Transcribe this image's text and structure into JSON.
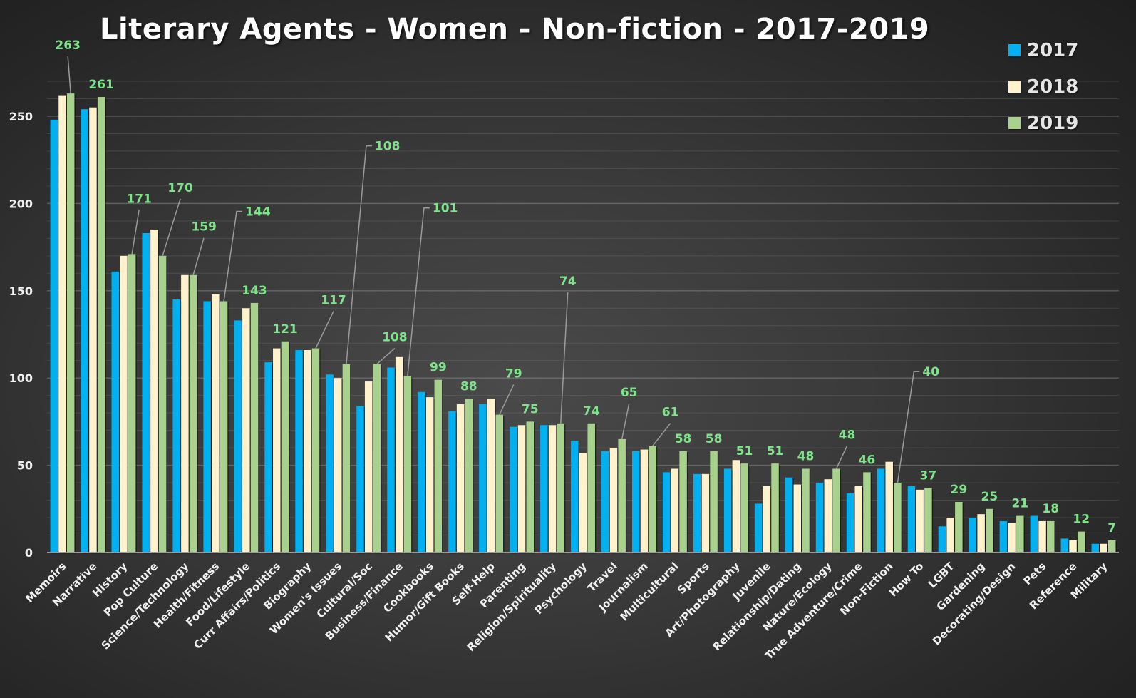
{
  "chart_data": {
    "type": "bar",
    "title": "Literary Agents - Women - Non-fiction - 2017-2019",
    "xlabel": "",
    "ylabel": "",
    "ylim": [
      0,
      270
    ],
    "yticks": [
      0,
      50,
      100,
      150,
      200,
      250
    ],
    "grid": true,
    "grid_minor_step": 10,
    "legend_position": "top-right",
    "categories": [
      "Memoirs",
      "Narrative",
      "History",
      "Pop Culture",
      "Science/Technology",
      "Health/Fitness",
      "Food/Lifestyle",
      "Curr Affairs/Politics",
      "Biography",
      "Women's Issues",
      "Cultural/Soc",
      "Business/Finance",
      "Cookbooks",
      "Humor/Gift Books",
      "Self-Help",
      "Parenting",
      "Religion/Spirituality",
      "Psychology",
      "Travel",
      "Journalism",
      "Multicultural",
      "Sports",
      "Art/Photography",
      "Juvenile",
      "Relationship/Dating",
      "Nature/Ecology",
      "True Adventure/Crime",
      "Non-Fiction",
      "How To",
      "LGBT",
      "Gardening",
      "Decorating/Design",
      "Pets",
      "Reference",
      "Military"
    ],
    "series": [
      {
        "name": "2017",
        "color": "#00b0f0",
        "values": [
          248,
          254,
          161,
          183,
          145,
          144,
          133,
          109,
          116,
          102,
          84,
          106,
          92,
          81,
          85,
          72,
          73,
          64,
          58,
          58,
          46,
          45,
          48,
          28,
          43,
          40,
          34,
          48,
          38,
          15,
          20,
          18,
          21,
          8,
          5
        ]
      },
      {
        "name": "2018",
        "color": "#fff2cc",
        "values": [
          262,
          255,
          170,
          185,
          159,
          148,
          140,
          117,
          116,
          100,
          98,
          112,
          89,
          85,
          88,
          73,
          73,
          57,
          60,
          59,
          48,
          45,
          53,
          38,
          39,
          42,
          38,
          52,
          36,
          20,
          22,
          17,
          18,
          7,
          5
        ]
      },
      {
        "name": "2019",
        "color": "#a9d18e",
        "values": [
          263,
          261,
          171,
          170,
          159,
          144,
          143,
          121,
          117,
          108,
          108,
          101,
          99,
          88,
          79,
          75,
          74,
          74,
          65,
          61,
          58,
          58,
          51,
          51,
          48,
          48,
          46,
          40,
          37,
          29,
          25,
          21,
          18,
          12,
          7
        ]
      }
    ],
    "data_labels_series": "2019",
    "data_labels": [
      263,
      261,
      171,
      170,
      159,
      144,
      143,
      121,
      117,
      108,
      108,
      101,
      99,
      88,
      79,
      75,
      74,
      74,
      65,
      61,
      58,
      58,
      51,
      51,
      48,
      48,
      46,
      40,
      37,
      29,
      25,
      21,
      18,
      12,
      7
    ],
    "label_color": "#7fe38a"
  }
}
